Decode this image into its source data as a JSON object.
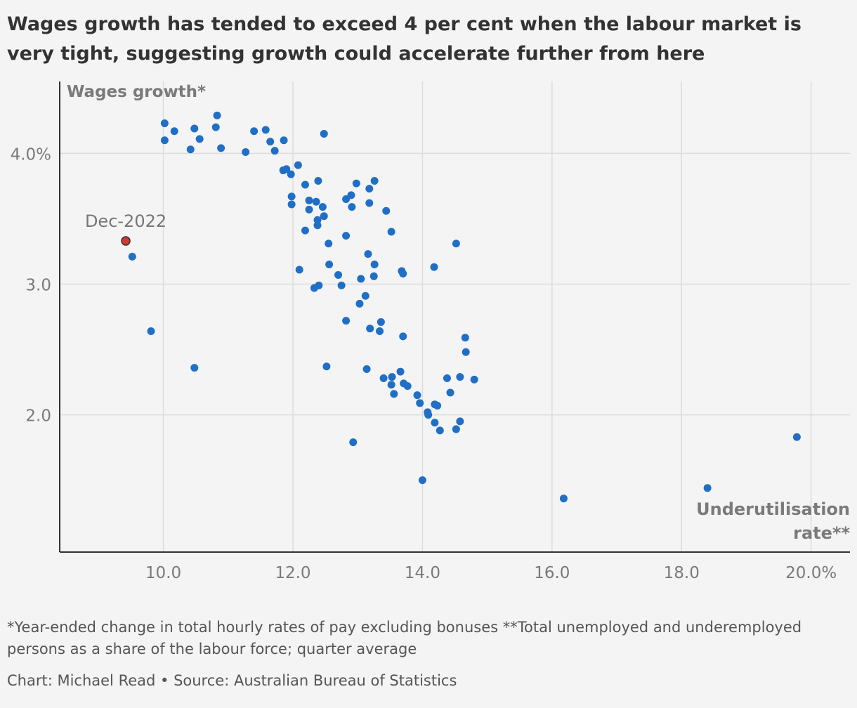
{
  "title": "Wages growth has tended to exceed 4 per cent when the labour market is very tight, suggesting growth could accelerate further from here",
  "footnote": "*Year-ended change in total hourly rates of pay excluding bonuses **Total unemployed and underemployed persons as a share of the labour force; quarter average",
  "credit": "Chart: Michael Read • Source: Australian Bureau of Statistics",
  "colors": {
    "point": "#1f6fc6",
    "highlight": "#d23a2f",
    "grid": "#dcdcdc",
    "axis": "#333333"
  },
  "chart_data": {
    "type": "scatter",
    "ylabel": "Wages growth*",
    "xlabel_line1": "Underutilisation",
    "xlabel_line2": "rate**",
    "xlim": [
      8.4,
      20.6
    ],
    "ylim": [
      0.95,
      4.55
    ],
    "x_ticks": [
      {
        "value": 10,
        "label": "10.0"
      },
      {
        "value": 12,
        "label": "12.0"
      },
      {
        "value": 14,
        "label": "14.0"
      },
      {
        "value": 16,
        "label": "16.0"
      },
      {
        "value": 18,
        "label": "18.0"
      },
      {
        "value": 20,
        "label": "20.0%"
      }
    ],
    "y_ticks": [
      {
        "value": 2,
        "label": "2.0"
      },
      {
        "value": 3,
        "label": "3.0"
      },
      {
        "value": 4,
        "label": "4.0%"
      }
    ],
    "highlight": {
      "label": "Dec-2022",
      "x": 9.42,
      "y": 3.33
    },
    "points": [
      [
        10.02,
        4.23
      ],
      [
        10.02,
        4.1
      ],
      [
        10.17,
        4.17
      ],
      [
        10.48,
        4.19
      ],
      [
        10.56,
        4.11
      ],
      [
        10.42,
        4.03
      ],
      [
        10.83,
        4.29
      ],
      [
        10.81,
        4.2
      ],
      [
        10.89,
        4.04
      ],
      [
        11.27,
        4.01
      ],
      [
        11.4,
        4.17
      ],
      [
        11.58,
        4.18
      ],
      [
        11.65,
        4.09
      ],
      [
        11.72,
        4.02
      ],
      [
        11.86,
        4.1
      ],
      [
        12.48,
        4.15
      ],
      [
        11.85,
        3.87
      ],
      [
        11.9,
        3.88
      ],
      [
        11.97,
        3.84
      ],
      [
        12.08,
        3.91
      ],
      [
        12.19,
        3.76
      ],
      [
        12.39,
        3.79
      ],
      [
        11.98,
        3.67
      ],
      [
        11.98,
        3.61
      ],
      [
        12.25,
        3.64
      ],
      [
        12.25,
        3.57
      ],
      [
        12.36,
        3.63
      ],
      [
        12.46,
        3.59
      ],
      [
        12.48,
        3.52
      ],
      [
        12.38,
        3.49
      ],
      [
        12.38,
        3.45
      ],
      [
        12.19,
        3.41
      ],
      [
        12.55,
        3.31
      ],
      [
        12.82,
        3.65
      ],
      [
        12.9,
        3.68
      ],
      [
        12.91,
        3.59
      ],
      [
        12.98,
        3.77
      ],
      [
        13.18,
        3.73
      ],
      [
        13.18,
        3.62
      ],
      [
        13.26,
        3.79
      ],
      [
        13.44,
        3.56
      ],
      [
        13.52,
        3.4
      ],
      [
        12.82,
        3.37
      ],
      [
        12.1,
        3.11
      ],
      [
        12.56,
        3.15
      ],
      [
        12.7,
        3.07
      ],
      [
        12.75,
        2.99
      ],
      [
        12.4,
        2.99
      ],
      [
        12.33,
        2.97
      ],
      [
        13.16,
        3.23
      ],
      [
        13.26,
        3.15
      ],
      [
        13.25,
        3.06
      ],
      [
        13.05,
        3.04
      ],
      [
        13.12,
        2.91
      ],
      [
        13.03,
        2.85
      ],
      [
        13.68,
        3.1
      ],
      [
        13.7,
        3.08
      ],
      [
        14.18,
        3.13
      ],
      [
        14.52,
        3.31
      ],
      [
        12.82,
        2.72
      ],
      [
        13.19,
        2.66
      ],
      [
        13.36,
        2.71
      ],
      [
        13.34,
        2.64
      ],
      [
        13.7,
        2.6
      ],
      [
        12.52,
        2.37
      ],
      [
        13.14,
        2.35
      ],
      [
        13.4,
        2.28
      ],
      [
        13.53,
        2.29
      ],
      [
        13.52,
        2.23
      ],
      [
        13.66,
        2.33
      ],
      [
        13.71,
        2.24
      ],
      [
        13.77,
        2.22
      ],
      [
        13.56,
        2.16
      ],
      [
        13.92,
        2.15
      ],
      [
        13.96,
        2.09
      ],
      [
        14.08,
        2.02
      ],
      [
        14.09,
        2.0
      ],
      [
        14.19,
        2.08
      ],
      [
        14.23,
        2.07
      ],
      [
        14.19,
        1.94
      ],
      [
        14.27,
        1.88
      ],
      [
        14.38,
        2.28
      ],
      [
        14.43,
        2.17
      ],
      [
        14.58,
        2.29
      ],
      [
        14.66,
        2.59
      ],
      [
        14.67,
        2.48
      ],
      [
        14.8,
        2.27
      ],
      [
        14.52,
        1.89
      ],
      [
        14.58,
        1.95
      ],
      [
        9.52,
        3.21
      ],
      [
        9.81,
        2.64
      ],
      [
        10.48,
        2.36
      ],
      [
        12.93,
        1.79
      ],
      [
        14.0,
        1.5
      ],
      [
        16.18,
        1.36
      ],
      [
        18.4,
        1.44
      ],
      [
        19.78,
        1.83
      ]
    ]
  }
}
